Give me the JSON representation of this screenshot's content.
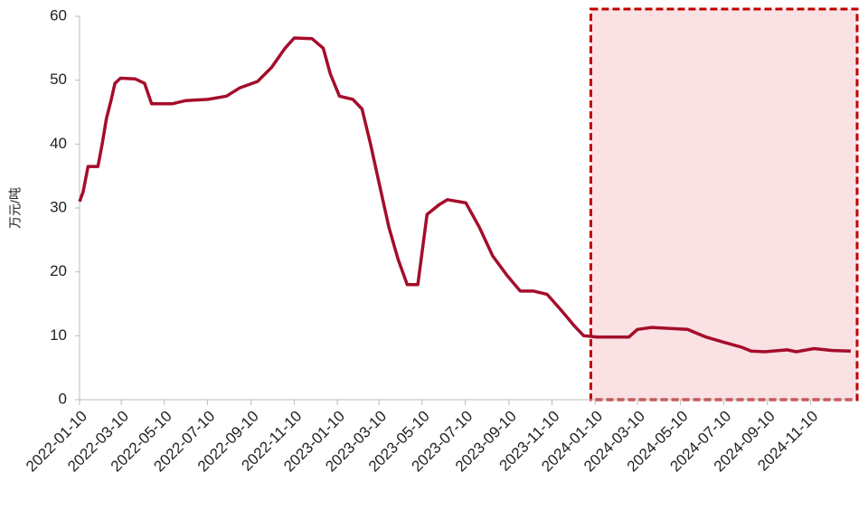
{
  "chart_data": {
    "type": "line",
    "y_label": "万元/吨",
    "x": [
      "2022-01-10",
      "2022-01-15",
      "2022-01-22",
      "2022-02-05",
      "2022-02-11",
      "2022-02-17",
      "2022-02-24",
      "2022-03-01",
      "2022-03-09",
      "2022-03-30",
      "2022-04-12",
      "2022-04-22",
      "2022-05-21",
      "2022-06-09",
      "2022-07-11",
      "2022-08-06",
      "2022-08-25",
      "2022-09-19",
      "2022-10-09",
      "2022-10-28",
      "2022-11-10",
      "2022-12-05",
      "2022-12-21",
      "2022-12-31",
      "2023-01-13",
      "2023-02-01",
      "2023-02-14",
      "2023-02-26",
      "2023-03-11",
      "2023-03-24",
      "2023-04-06",
      "2023-04-19",
      "2023-05-04",
      "2023-05-17",
      "2023-06-03",
      "2023-06-15",
      "2023-07-11",
      "2023-07-30",
      "2023-08-18",
      "2023-09-07",
      "2023-09-26",
      "2023-10-15",
      "2023-11-03",
      "2023-11-23",
      "2023-12-12",
      "2023-12-25",
      "2024-01-13",
      "2024-02-27",
      "2024-03-10",
      "2024-03-30",
      "2024-05-20",
      "2024-06-15",
      "2024-07-10",
      "2024-08-05",
      "2024-08-18",
      "2024-09-06",
      "2024-10-08",
      "2024-10-21",
      "2024-11-15",
      "2024-12-11",
      "2025-01-06"
    ],
    "series": [
      {
        "color": "#a50d2b",
        "values": [
          31,
          32.5,
          36.5,
          36.5,
          40,
          44,
          47,
          49.5,
          50.3,
          50.2,
          49.5,
          46.3,
          46.3,
          46.8,
          47,
          47.5,
          48.8,
          49.8,
          52,
          55,
          56.6,
          56.5,
          55,
          51,
          47.5,
          47,
          45.5,
          40,
          33.5,
          27,
          22,
          18,
          18,
          29,
          30.5,
          31.3,
          30.8,
          27,
          22.5,
          19.5,
          17,
          17,
          16.5,
          14,
          11.5,
          10,
          9.8,
          9.8,
          11,
          11.3,
          11,
          9.8,
          9,
          8.2,
          7.6,
          7.5,
          7.8,
          7.5,
          8,
          7.7,
          7.6
        ]
      }
    ],
    "xlim": [
      "2022-01-10",
      "2025-01-10"
    ],
    "xticks": [
      "2022-01-10",
      "2022-03-10",
      "2022-05-10",
      "2022-07-10",
      "2022-09-10",
      "2022-11-10",
      "2023-01-10",
      "2023-03-10",
      "2023-05-10",
      "2023-07-10",
      "2023-09-10",
      "2023-11-10",
      "2024-01-10",
      "2024-03-10",
      "2024-05-10",
      "2024-07-10",
      "2024-09-10",
      "2024-11-10"
    ],
    "ylim": [
      0,
      60
    ],
    "yticks": [
      0,
      10,
      20,
      30,
      40,
      50,
      60
    ],
    "highlight": {
      "x": [
        "2024-01-04",
        "2025-01-10"
      ],
      "fill": "#f9e1e4",
      "border": "#c00000"
    }
  }
}
